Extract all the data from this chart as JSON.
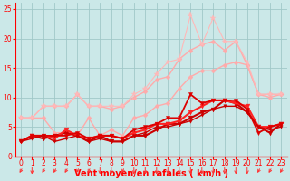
{
  "bg_color": "#cbe8e8",
  "grid_color": "#a0c8c8",
  "axis_color": "#ff0000",
  "xlabel": "Vent moyen/en rafales ( km/h )",
  "xlim": [
    -0.5,
    23.5
  ],
  "ylim": [
    0,
    26
  ],
  "yticks": [
    0,
    5,
    10,
    15,
    20,
    25
  ],
  "xticks": [
    0,
    1,
    2,
    3,
    4,
    5,
    6,
    7,
    8,
    9,
    10,
    11,
    12,
    13,
    14,
    15,
    16,
    17,
    18,
    19,
    20,
    21,
    22,
    23
  ],
  "lines": [
    {
      "x": [
        0,
        1,
        2,
        3,
        4,
        5,
        6,
        7,
        8,
        9,
        10,
        11,
        12,
        13,
        14,
        15,
        16,
        17,
        18,
        19,
        20,
        21,
        22,
        23
      ],
      "y": [
        6.5,
        6.5,
        8.5,
        8.5,
        8.5,
        10.5,
        8.5,
        8.5,
        8.0,
        8.5,
        10.0,
        11.0,
        13.0,
        13.5,
        16.5,
        18.0,
        19.0,
        19.5,
        18.0,
        19.5,
        15.5,
        10.5,
        10.5,
        10.5
      ],
      "color": "#ffaaaa",
      "lw": 1.0,
      "marker": "D",
      "ms": 2.5
    },
    {
      "x": [
        0,
        1,
        2,
        3,
        4,
        5,
        6,
        7,
        8,
        9,
        10,
        11,
        12,
        13,
        14,
        15,
        16,
        17,
        18,
        19,
        20,
        21,
        22,
        23
      ],
      "y": [
        6.5,
        6.5,
        6.5,
        4.0,
        4.0,
        3.5,
        6.5,
        3.5,
        4.5,
        3.5,
        6.5,
        7.0,
        8.5,
        9.0,
        11.5,
        13.5,
        14.5,
        14.5,
        15.5,
        16.0,
        15.5,
        10.5,
        10.0,
        10.5
      ],
      "color": "#ffaaaa",
      "lw": 1.0,
      "marker": "D",
      "ms": 2.5
    },
    {
      "x": [
        0,
        1,
        2,
        3,
        4,
        5,
        6,
        7,
        8,
        9,
        10,
        11,
        12,
        13,
        14,
        15,
        16,
        17,
        18,
        19,
        20,
        21,
        22,
        23
      ],
      "y": [
        6.5,
        6.5,
        8.5,
        8.5,
        8.5,
        10.5,
        8.5,
        8.5,
        8.5,
        8.5,
        10.5,
        11.5,
        14.0,
        16.0,
        16.5,
        24.0,
        19.0,
        23.5,
        19.5,
        19.5,
        16.0,
        10.5,
        10.5,
        10.5
      ],
      "color": "#ffb8b8",
      "lw": 0.8,
      "marker": "*",
      "ms": 4
    },
    {
      "x": [
        0,
        1,
        2,
        3,
        4,
        5,
        6,
        7,
        8,
        9,
        10,
        11,
        12,
        13,
        14,
        15,
        16,
        17,
        18,
        19,
        20,
        21,
        22,
        23
      ],
      "y": [
        2.5,
        3.5,
        3.0,
        3.5,
        4.0,
        3.5,
        2.5,
        3.5,
        2.5,
        2.5,
        3.5,
        3.5,
        4.5,
        5.5,
        5.5,
        6.5,
        7.5,
        8.0,
        9.5,
        9.0,
        7.5,
        5.0,
        4.0,
        5.5
      ],
      "color": "#cc0000",
      "lw": 1.5,
      "marker": "v",
      "ms": 3.5
    },
    {
      "x": [
        0,
        1,
        2,
        3,
        4,
        5,
        6,
        7,
        8,
        9,
        10,
        11,
        12,
        13,
        14,
        15,
        16,
        17,
        18,
        19,
        20,
        21,
        22,
        23
      ],
      "y": [
        2.5,
        3.5,
        3.5,
        3.0,
        4.5,
        3.5,
        3.0,
        3.5,
        3.5,
        3.0,
        4.0,
        4.5,
        5.5,
        5.5,
        6.0,
        7.5,
        8.5,
        9.5,
        9.5,
        9.0,
        8.5,
        5.0,
        5.0,
        5.5
      ],
      "color": "#ff2222",
      "lw": 1.5,
      "marker": "v",
      "ms": 3.5
    },
    {
      "x": [
        0,
        1,
        2,
        3,
        4,
        5,
        6,
        7,
        8,
        9,
        10,
        11,
        12,
        13,
        14,
        15,
        16,
        17,
        18,
        19,
        20,
        21,
        22,
        23
      ],
      "y": [
        2.5,
        3.5,
        3.5,
        3.5,
        3.5,
        4.0,
        3.0,
        3.5,
        3.5,
        3.0,
        4.5,
        5.0,
        5.5,
        6.5,
        6.5,
        10.5,
        9.0,
        9.5,
        9.5,
        9.5,
        8.0,
        4.0,
        5.0,
        5.5
      ],
      "color": "#dd0000",
      "lw": 1.3,
      "marker": "v",
      "ms": 3.0
    },
    {
      "x": [
        0,
        1,
        2,
        3,
        4,
        5,
        6,
        7,
        8,
        9,
        10,
        11,
        12,
        13,
        14,
        15,
        16,
        17,
        18,
        19,
        20,
        21,
        22,
        23
      ],
      "y": [
        2.5,
        3.0,
        3.5,
        2.5,
        3.0,
        3.5,
        2.5,
        3.0,
        2.5,
        2.5,
        3.5,
        4.0,
        5.0,
        5.0,
        5.5,
        6.0,
        7.0,
        8.0,
        8.5,
        8.5,
        7.5,
        5.0,
        4.5,
        5.0
      ],
      "color": "#cc0000",
      "lw": 1.0,
      "marker": "v",
      "ms": 2.5
    }
  ],
  "arrow_color": "#ff3333",
  "tick_color": "#ff0000",
  "label_color": "#ff0000",
  "label_fontsize": 7,
  "tick_fontsize": 5.5
}
